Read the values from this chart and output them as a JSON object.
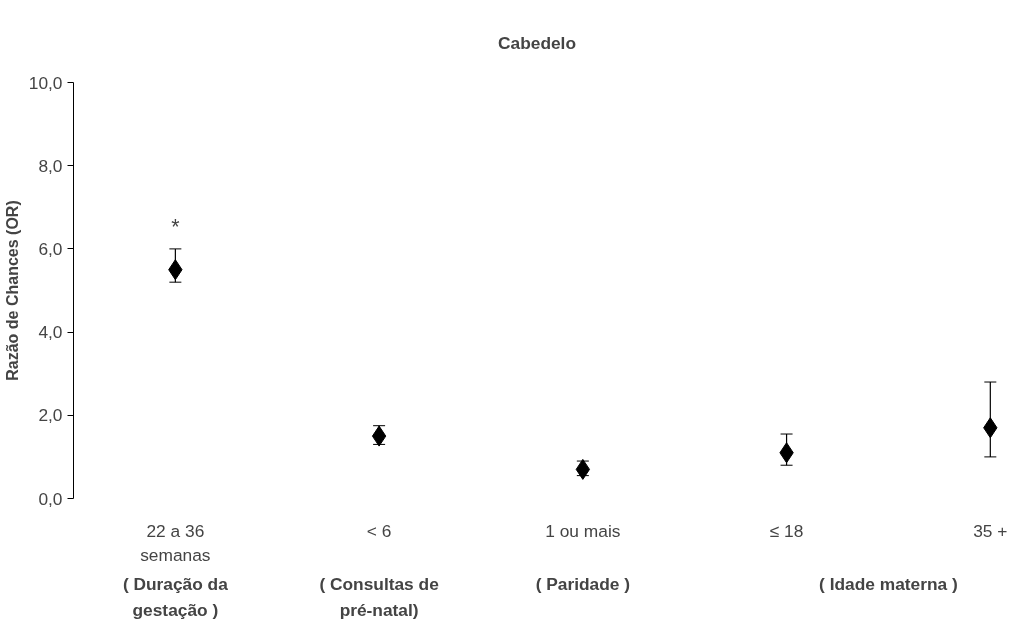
{
  "chart_data": {
    "type": "scatter",
    "title": "Cabedelo",
    "ylabel": "Razão de Chances (OR)",
    "categories": [
      "22 a 36\nsemanas",
      "< 6",
      "1 ou mais",
      "≤ 18",
      "35 +"
    ],
    "series": [
      {
        "color": "#000000",
        "values": [
          5.5,
          1.5,
          0.7,
          1.1,
          1.7
        ],
        "errors": [
          [
            5.2,
            6.0
          ],
          [
            1.3,
            1.75
          ],
          [
            0.55,
            0.9
          ],
          [
            0.8,
            1.55
          ],
          [
            1.0,
            2.8
          ]
        ]
      }
    ],
    "marker": "diamond",
    "grid": false,
    "ylim": [
      0,
      10
    ],
    "yticks": [
      {
        "value": 0,
        "label": "0,0"
      },
      {
        "value": 2,
        "label": "2,0"
      },
      {
        "value": 4,
        "label": "4,0"
      },
      {
        "value": 6,
        "label": "6,0"
      },
      {
        "value": 8,
        "label": "8,0"
      },
      {
        "value": 10,
        "label": "10,0"
      }
    ],
    "annotations": [
      "*",
      "( Duração da\ngestação )",
      "( Consultas de\npré-natal)",
      "( Paridade )",
      "( Idade materna )"
    ]
  }
}
